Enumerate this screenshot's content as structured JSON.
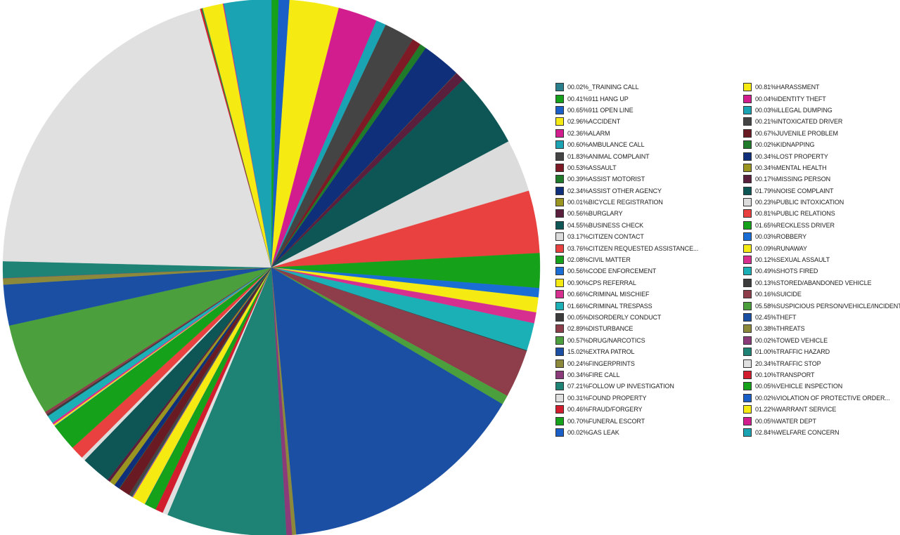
{
  "chart_data": {
    "type": "pie",
    "slices": [
      {
        "label": "00.02%_TRAINING CALL",
        "value": 0.02,
        "color": "#2a7f8c"
      },
      {
        "label": "00.41%911 HANG UP",
        "value": 0.41,
        "color": "#16a11a"
      },
      {
        "label": "00.65%911 OPEN LINE",
        "value": 0.65,
        "color": "#1a5fc8"
      },
      {
        "label": "02.96%ACCIDENT",
        "value": 2.96,
        "color": "#f5eb13"
      },
      {
        "label": "02.36%ALARM",
        "value": 2.36,
        "color": "#d21d8f"
      },
      {
        "label": "00.60%AMBULANCE CALL",
        "value": 0.6,
        "color": "#19a3b3"
      },
      {
        "label": "01.83%ANIMAL COMPLAINT",
        "value": 1.83,
        "color": "#444444"
      },
      {
        "label": "00.53%ASSAULT",
        "value": 0.53,
        "color": "#7d1a25"
      },
      {
        "label": "00.39%ASSIST MOTORIST",
        "value": 0.39,
        "color": "#1f7a2a"
      },
      {
        "label": "02.34%ASSIST OTHER AGENCY",
        "value": 2.34,
        "color": "#0f2f7a"
      },
      {
        "label": "00.01%BICYCLE REGISTRATION",
        "value": 0.01,
        "color": "#9a9420"
      },
      {
        "label": "00.56%BURGLARY",
        "value": 0.56,
        "color": "#5a1f3d"
      },
      {
        "label": "04.55%BUSINESS CHECK",
        "value": 4.55,
        "color": "#0e5656"
      },
      {
        "label": "03.17%CITIZEN CONTACT",
        "value": 3.17,
        "color": "#dcdcdc"
      },
      {
        "label": "03.76%CITIZEN REQUESTED ASSISTANCE...",
        "value": 3.76,
        "color": "#e8413f"
      },
      {
        "label": "02.08%CIVIL MATTER",
        "value": 2.08,
        "color": "#16a11a"
      },
      {
        "label": "00.56%CODE ENFORCEMENT",
        "value": 0.56,
        "color": "#1a6dd4"
      },
      {
        "label": "00.90%CPS REFERRAL",
        "value": 0.9,
        "color": "#f5eb13"
      },
      {
        "label": "00.66%CRIMINAL MISCHIEF",
        "value": 0.66,
        "color": "#d62f8f"
      },
      {
        "label": "01.66%CRIMINAL TRESPASS",
        "value": 1.66,
        "color": "#1ab0b5"
      },
      {
        "label": "00.05%DISORDERLY CONDUCT",
        "value": 0.05,
        "color": "#3c3c3c"
      },
      {
        "label": "02.89%DISTURBANCE",
        "value": 2.89,
        "color": "#8e3e4b"
      },
      {
        "label": "00.57%DRUG/NARCOTICS",
        "value": 0.57,
        "color": "#4b9f3c"
      },
      {
        "label": "15.02%EXTRA PATROL",
        "value": 15.02,
        "color": "#1a4fa3"
      },
      {
        "label": "00.24%FINGERPRINTS",
        "value": 0.24,
        "color": "#8c8a3a"
      },
      {
        "label": "00.34%FIRE CALL",
        "value": 0.34,
        "color": "#8b3a7a"
      },
      {
        "label": "07.21%FOLLOW UP INVESTIGATION",
        "value": 7.21,
        "color": "#1e8275"
      },
      {
        "label": "00.31%FOUND PROPERTY",
        "value": 0.31,
        "color": "#e0e0e0"
      },
      {
        "label": "00.46%FRAUD/FORGERY",
        "value": 0.46,
        "color": "#d21d2f"
      },
      {
        "label": "00.70%FUNERAL ESCORT",
        "value": 0.7,
        "color": "#16a11a"
      },
      {
        "label": "00.02%GAS LEAK",
        "value": 0.02,
        "color": "#1a5fc8"
      },
      {
        "label": "00.81%HARASSMENT",
        "value": 0.81,
        "color": "#f5eb13"
      },
      {
        "label": "00.04%IDENTITY THEFT",
        "value": 0.04,
        "color": "#d21d8f"
      },
      {
        "label": "00.03%ILLEGAL DUMPING",
        "value": 0.03,
        "color": "#19a3b3"
      },
      {
        "label": "00.21%INTOXICATED DRIVER",
        "value": 0.21,
        "color": "#444444"
      },
      {
        "label": "00.67%JUVENILE PROBLEM",
        "value": 0.67,
        "color": "#6a1a22"
      },
      {
        "label": "00.02%KIDNAPPING",
        "value": 0.02,
        "color": "#1f7a2a"
      },
      {
        "label": "00.34%LOST PROPERTY",
        "value": 0.34,
        "color": "#0f2f7a"
      },
      {
        "label": "00.34%MENTAL HEALTH",
        "value": 0.34,
        "color": "#9a9420"
      },
      {
        "label": "00.17%MISSING PERSON",
        "value": 0.17,
        "color": "#5a1f3d"
      },
      {
        "label": "01.79%NOISE COMPLAINT",
        "value": 1.79,
        "color": "#0e5656"
      },
      {
        "label": "00.23%PUBLIC INTOXICATION",
        "value": 0.23,
        "color": "#dcdcdc"
      },
      {
        "label": "00.81%PUBLIC RELATIONS",
        "value": 0.81,
        "color": "#e8413f"
      },
      {
        "label": "01.65%RECKLESS DRIVER",
        "value": 1.65,
        "color": "#16a11a"
      },
      {
        "label": "00.03%ROBBERY",
        "value": 0.03,
        "color": "#1a6dd4"
      },
      {
        "label": "00.09%RUNAWAY",
        "value": 0.09,
        "color": "#f5eb13"
      },
      {
        "label": "00.12%SEXUAL ASSAULT",
        "value": 0.12,
        "color": "#d62f8f"
      },
      {
        "label": "00.49%SHOTS FIRED",
        "value": 0.49,
        "color": "#1ab0b5"
      },
      {
        "label": "00.13%STORED/ABANDONED VEHICLE",
        "value": 0.13,
        "color": "#3c3c3c"
      },
      {
        "label": "00.16%SUICIDE",
        "value": 0.16,
        "color": "#8e3e4b"
      },
      {
        "label": "05.58%SUSPICIOUS PERSON/VEHICLE/INCIDENT...",
        "value": 5.58,
        "color": "#4b9f3c"
      },
      {
        "label": "02.45%THEFT",
        "value": 2.45,
        "color": "#1a4fa3"
      },
      {
        "label": "00.38%THREATS",
        "value": 0.38,
        "color": "#8c8a3a"
      },
      {
        "label": "00.02%TOWED VEHICLE",
        "value": 0.02,
        "color": "#8b3a7a"
      },
      {
        "label": "01.00%TRAFFIC HAZARD",
        "value": 1.0,
        "color": "#1e8275"
      },
      {
        "label": "20.34%TRAFFIC STOP",
        "value": 20.34,
        "color": "#e0e0e0"
      },
      {
        "label": "00.10%TRANSPORT",
        "value": 0.1,
        "color": "#d21d2f"
      },
      {
        "label": "00.05%VEHICLE INSPECTION",
        "value": 0.05,
        "color": "#16a11a"
      },
      {
        "label": "00.02%VIOLATION OF PROTECTIVE ORDER...",
        "value": 0.02,
        "color": "#1a5fc8"
      },
      {
        "label": "01.22%WARRANT SERVICE",
        "value": 1.22,
        "color": "#f5eb13"
      },
      {
        "label": "00.05%WATER DEPT",
        "value": 0.05,
        "color": "#d21d8f"
      },
      {
        "label": "02.84%WELFARE CONCERN",
        "value": 2.84,
        "color": "#19a3b3"
      }
    ],
    "legend_position": "right",
    "legend_columns": 2,
    "start_angle": "top",
    "direction": "clockwise"
  }
}
